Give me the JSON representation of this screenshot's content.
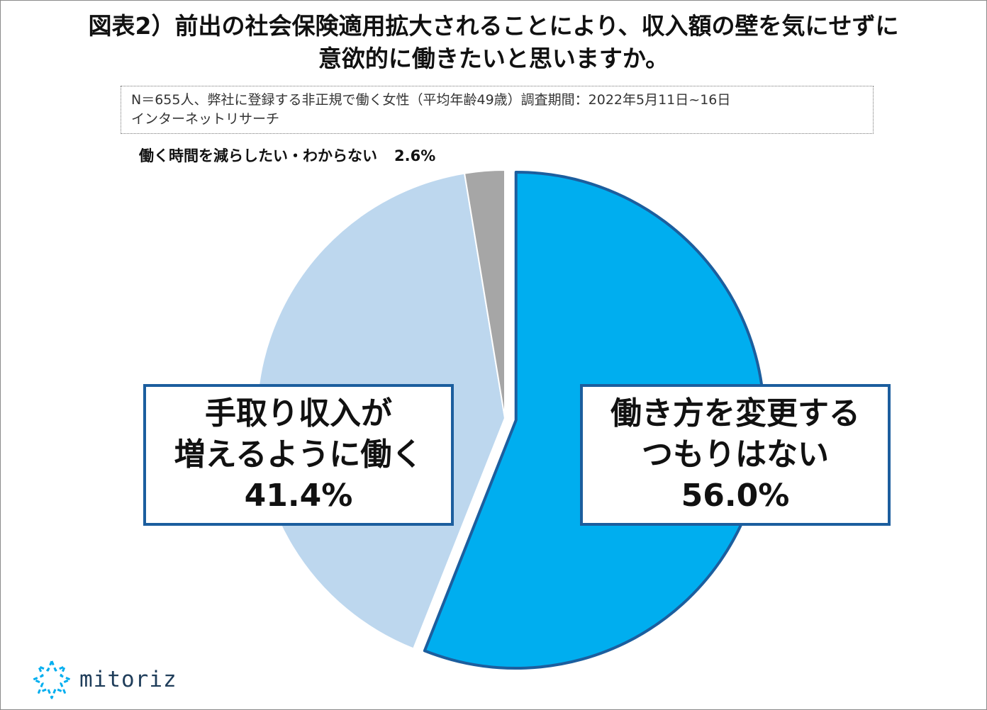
{
  "title": {
    "line1": "図表2）前出の社会保険適用拡大されることにより、収入額の壁を気にせずに",
    "line2": "意欲的に働きたいと思いますか。"
  },
  "note": {
    "line1": "N＝655人、弊社に登録する非正規で働く女性（平均年齢49歳）調査期間：2022年5月11日~16日",
    "line2": "インターネットリサーチ"
  },
  "chart_data": {
    "type": "pie",
    "start": "12 o'clock",
    "direction": "clockwise",
    "slices": [
      {
        "label_lines": [
          "働き方を変更する",
          "つもりはない"
        ],
        "value": 56.0,
        "value_text": "56.0%",
        "color": "#00aeef",
        "stroke": "#1c5e9e",
        "exploded": true
      },
      {
        "label_lines": [
          "手取り収入が",
          "増えるように働く"
        ],
        "value": 41.4,
        "value_text": "41.4%",
        "color": "#bdd7ee",
        "stroke": "#ffffff",
        "exploded": false
      },
      {
        "label_lines": [
          "働く時間を減らしたい・わからない"
        ],
        "value": 2.6,
        "value_text": "2.6%",
        "color": "#a6a6a6",
        "stroke": "#ffffff",
        "exploded": false
      }
    ]
  },
  "logo": {
    "text": "mitoriz",
    "icon": "mitoriz-star-logo-icon",
    "color": "#00aeef"
  }
}
